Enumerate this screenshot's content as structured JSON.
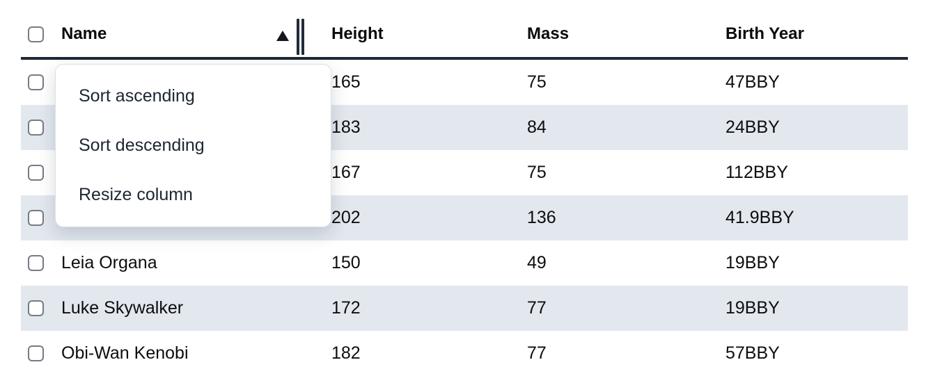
{
  "table": {
    "columns": [
      {
        "label": "Name"
      },
      {
        "label": "Height"
      },
      {
        "label": "Mass"
      },
      {
        "label": "Birth Year"
      }
    ],
    "sort": {
      "column": "Name",
      "direction": "ascending"
    },
    "rows": [
      {
        "name": "",
        "height": "165",
        "mass": "75",
        "birth_year": "47BBY",
        "selected": false
      },
      {
        "name": "",
        "height": "183",
        "mass": "84",
        "birth_year": "24BBY",
        "selected": false
      },
      {
        "name": "",
        "height": "167",
        "mass": "75",
        "birth_year": "112BBY",
        "selected": false
      },
      {
        "name": "",
        "height": "202",
        "mass": "136",
        "birth_year": "41.9BBY",
        "selected": false
      },
      {
        "name": "Leia Organa",
        "height": "150",
        "mass": "49",
        "birth_year": "19BBY",
        "selected": false
      },
      {
        "name": "Luke Skywalker",
        "height": "172",
        "mass": "77",
        "birth_year": "19BBY",
        "selected": false
      },
      {
        "name": "Obi-Wan Kenobi",
        "height": "182",
        "mass": "77",
        "birth_year": "57BBY",
        "selected": false
      }
    ]
  },
  "context_menu": {
    "items": [
      {
        "label": "Sort ascending"
      },
      {
        "label": "Sort descending"
      },
      {
        "label": "Resize column"
      }
    ]
  },
  "colors": {
    "stripe_row": "#e3e8ef",
    "header_border": "#1e2834",
    "menu_text": "#1e2533",
    "body_text": "#0c0d0f"
  }
}
